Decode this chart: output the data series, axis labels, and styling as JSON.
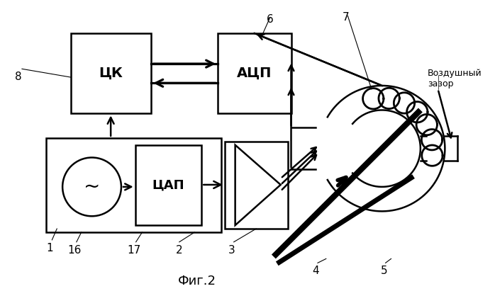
{
  "title": "Фиг.2",
  "background_color": "#ffffff",
  "labels": {
    "ck": "ЦК",
    "adp": "АЦП",
    "cap": "ЦАП",
    "air_gap": "Воздушный\nзазор"
  }
}
